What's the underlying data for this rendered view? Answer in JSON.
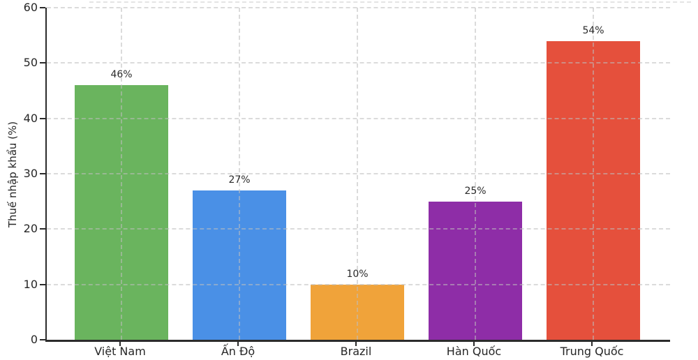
{
  "chart_data": {
    "type": "bar",
    "title": "",
    "xlabel": "",
    "ylabel": "Thuế nhập khẩu (%)",
    "categories": [
      "Việt Nam",
      "Ấn Độ",
      "Brazil",
      "Hàn Quốc",
      "Trung Quốc"
    ],
    "values": [
      46,
      27,
      10,
      25,
      54
    ],
    "bar_labels": [
      "46%",
      "27%",
      "10%",
      "25%",
      "54%"
    ],
    "bar_colors": [
      "#6ab45e",
      "#4a90e6",
      "#f0a33a",
      "#8e2da7",
      "#e5503c"
    ],
    "ylim": [
      0,
      60
    ],
    "yticks": [
      0,
      10,
      20,
      30,
      40,
      50,
      60
    ],
    "grid": "dashed horizontal lines at each y tick and dashed vertical lines at each bar center, drawn above bars",
    "legend": "none",
    "axis_color": "#2b2b2b"
  }
}
